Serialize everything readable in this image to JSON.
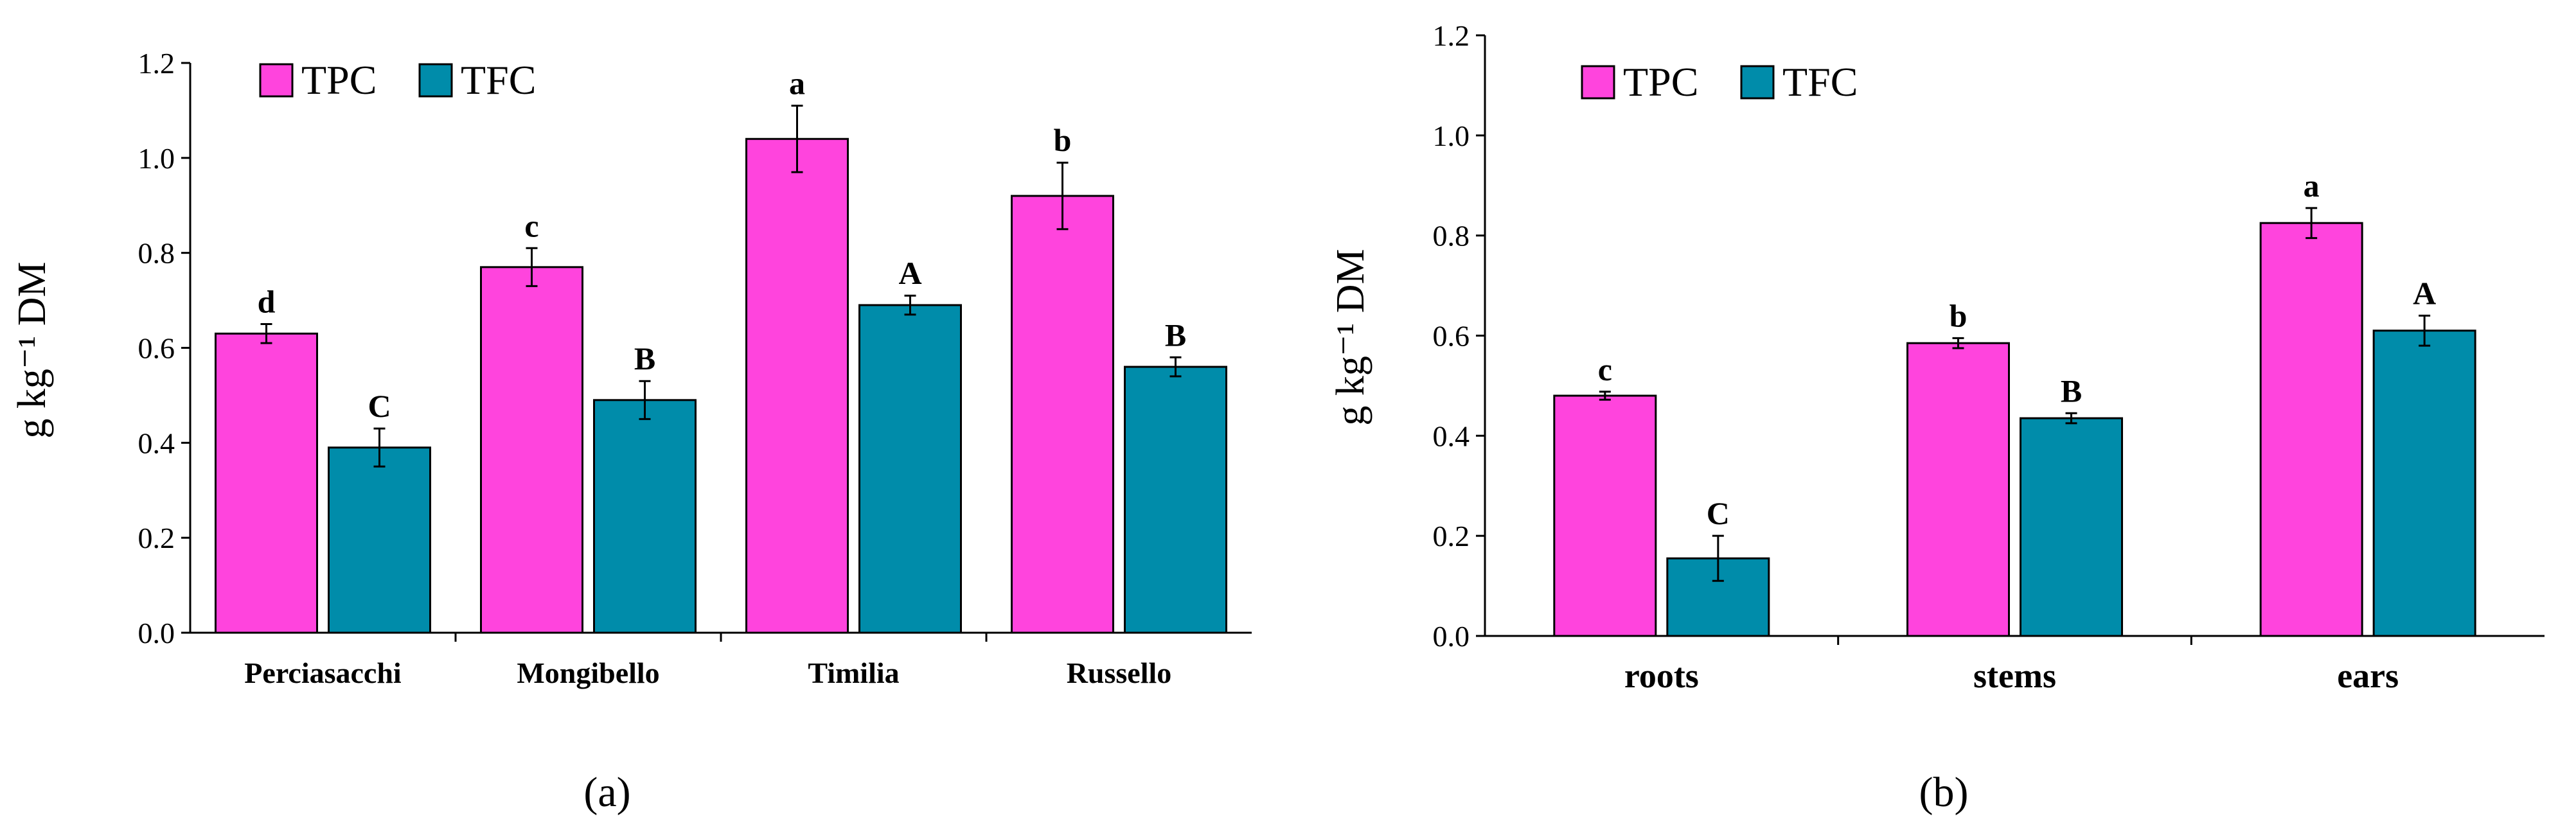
{
  "chart_data": [
    {
      "type": "bar",
      "panel_label": "(a)",
      "title": "",
      "xlabel": "",
      "ylabel": "g kg⁻¹ DM",
      "ylim": [
        0,
        1.2
      ],
      "yticks": [
        "0.0",
        "0.2",
        "0.4",
        "0.6",
        "0.8",
        "1.0",
        "1.2"
      ],
      "legend_position": "top-left",
      "categories": [
        "Perciasacchi",
        "Mongibello",
        "Timilia",
        "Russello"
      ],
      "series": [
        {
          "name": "TPC",
          "color": "#FF44DD",
          "values": [
            0.63,
            0.77,
            1.04,
            0.92
          ],
          "errors": [
            0.02,
            0.04,
            0.07,
            0.07
          ],
          "letters": [
            "d",
            "c",
            "a",
            "b"
          ]
        },
        {
          "name": "TFC",
          "color": "#008CAA",
          "values": [
            0.39,
            0.49,
            0.69,
            0.56
          ],
          "errors": [
            0.04,
            0.04,
            0.02,
            0.02
          ],
          "letters": [
            "C",
            "B",
            "A",
            "B"
          ]
        }
      ]
    },
    {
      "type": "bar",
      "panel_label": "(b)",
      "title": "",
      "xlabel": "",
      "ylabel": "g kg⁻¹ DM",
      "ylim": [
        0,
        1.2
      ],
      "yticks": [
        "0.0",
        "0.2",
        "0.4",
        "0.6",
        "0.8",
        "1.0",
        "1.2"
      ],
      "legend_position": "top-left",
      "categories": [
        "roots",
        "stems",
        "ears"
      ],
      "series": [
        {
          "name": "TPC",
          "color": "#FF44DD",
          "values": [
            0.48,
            0.585,
            0.825
          ],
          "errors": [
            0.008,
            0.01,
            0.03
          ],
          "letters": [
            "c",
            "b",
            "a"
          ]
        },
        {
          "name": "TFC",
          "color": "#008CAA",
          "values": [
            0.155,
            0.435,
            0.61
          ],
          "errors": [
            0.045,
            0.01,
            0.03
          ],
          "letters": [
            "C",
            "B",
            "A"
          ]
        }
      ]
    }
  ]
}
